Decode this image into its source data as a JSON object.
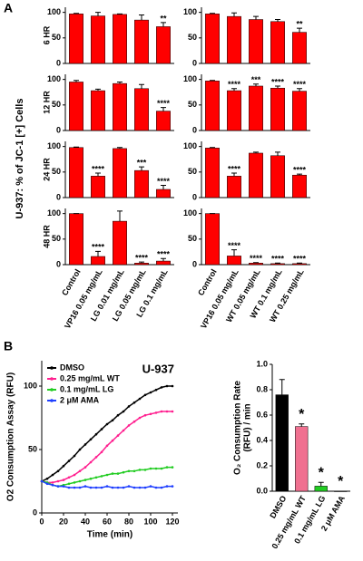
{
  "panels": [
    {
      "letter": "A",
      "ylabel": "U-937: % of JC-1 [+] Cells"
    },
    {
      "letter": "B"
    }
  ],
  "chart_data": [
    {
      "type": "bar",
      "label": "6 HR",
      "color": "#ff0000",
      "ylim": [
        0,
        110
      ],
      "yticks": [
        0,
        50,
        100
      ],
      "values": [
        97,
        93,
        96,
        85,
        72
      ],
      "errors": [
        1,
        7,
        1,
        10,
        8
      ],
      "significance": [
        null,
        null,
        null,
        null,
        "**"
      ]
    },
    {
      "type": "bar",
      "color": "#ff0000",
      "ylim": [
        0,
        110
      ],
      "yticks": [
        0,
        50,
        100
      ],
      "values": [
        97,
        92,
        86,
        82,
        61
      ],
      "errors": [
        1,
        7,
        6,
        4,
        8
      ],
      "significance": [
        null,
        null,
        null,
        null,
        "**"
      ]
    },
    {
      "type": "bar",
      "label": "12 HR",
      "color": "#ff0000",
      "ylim": [
        0,
        110
      ],
      "yticks": [
        0,
        50,
        100
      ],
      "values": [
        95,
        78,
        92,
        82,
        38
      ],
      "errors": [
        3,
        3,
        3,
        8,
        7
      ],
      "significance": [
        null,
        null,
        null,
        null,
        "****"
      ]
    },
    {
      "type": "bar",
      "color": "#ff0000",
      "ylim": [
        0,
        110
      ],
      "yticks": [
        0,
        50,
        100
      ],
      "values": [
        97,
        78,
        87,
        83,
        77
      ],
      "errors": [
        1,
        4,
        4,
        4,
        5
      ],
      "significance": [
        null,
        "****",
        "***",
        "****",
        "****"
      ]
    },
    {
      "type": "bar",
      "label": "24 HR",
      "color": "#ff0000",
      "ylim": [
        0,
        110
      ],
      "yticks": [
        0,
        50,
        100
      ],
      "values": [
        98,
        42,
        96,
        53,
        16
      ],
      "errors": [
        1,
        6,
        2,
        7,
        8
      ],
      "significance": [
        null,
        "****",
        null,
        "***",
        "****"
      ]
    },
    {
      "type": "bar",
      "color": "#ff0000",
      "ylim": [
        0,
        110
      ],
      "yticks": [
        0,
        50,
        100
      ],
      "values": [
        97,
        42,
        87,
        82,
        44
      ],
      "errors": [
        1,
        6,
        2,
        7,
        2
      ],
      "significance": [
        null,
        "****",
        null,
        null,
        "****"
      ]
    },
    {
      "type": "bar",
      "label": "48 HR",
      "color": "#ff0000",
      "ylim": [
        0,
        110
      ],
      "yticks": [
        0,
        50,
        100
      ],
      "categories": [
        "Control",
        "VP16 0.05 mg/mL",
        "LG 0.01 mg/mL",
        "LG 0.05 mg/mL",
        "LG 0.1 mg/mL"
      ],
      "values": [
        100,
        16,
        85,
        3,
        7
      ],
      "errors": [
        0,
        10,
        20,
        2,
        5
      ],
      "significance": [
        null,
        "****",
        null,
        "****",
        "****"
      ]
    },
    {
      "type": "bar",
      "color": "#ff0000",
      "ylim": [
        0,
        110
      ],
      "yticks": [
        0,
        50,
        100
      ],
      "categories": [
        "Control",
        "VP16 0.05 mg/mL",
        "WT 0.05 mg/mL",
        "WT 0.1 mg/mL",
        "WT 0.25 mg/mL"
      ],
      "values": [
        100,
        17,
        3,
        2,
        2
      ],
      "errors": [
        0,
        12,
        1,
        1,
        1
      ],
      "significance": [
        null,
        "****",
        "****",
        "****",
        "****"
      ]
    },
    {
      "type": "line",
      "title": "U-937",
      "ylabel": [
        "O2 Consumption Assay (RFU)"
      ],
      "xlabel": "Time (min)",
      "xlim": [
        0,
        125
      ],
      "xticks": [
        0,
        20,
        40,
        60,
        80,
        100,
        120
      ],
      "ylim": [
        0,
        120
      ],
      "yticks": [
        0,
        50,
        100
      ],
      "legend": "upper left",
      "x": [
        0,
        5,
        10,
        15,
        20,
        25,
        30,
        35,
        40,
        45,
        50,
        55,
        60,
        65,
        70,
        75,
        80,
        85,
        90,
        95,
        100,
        105,
        110,
        115,
        120
      ],
      "series": [
        {
          "name": "DMSO",
          "color": "#000000",
          "values": [
            25,
            27,
            30,
            33,
            37,
            41,
            45,
            50,
            54,
            58,
            62,
            66,
            70,
            73,
            77,
            80,
            84,
            87,
            90,
            93,
            95,
            97,
            99,
            100,
            100
          ]
        },
        {
          "name": "0.25 mg/mL WT",
          "color": "#ff1f8f",
          "values": [
            25,
            24,
            24,
            25,
            26,
            28,
            30,
            33,
            36,
            40,
            44,
            48,
            53,
            57,
            61,
            65,
            69,
            72,
            75,
            77,
            78,
            79,
            80,
            80,
            80
          ]
        },
        {
          "name": "0.1 mg/mL LG",
          "color": "#22cc22",
          "values": [
            25,
            24,
            22,
            21,
            22,
            23,
            24,
            25,
            26,
            27,
            28,
            29,
            30,
            31,
            31,
            32,
            33,
            33,
            34,
            34,
            35,
            35,
            35,
            36,
            36
          ]
        },
        {
          "name": "2 μM AMA",
          "color": "#1f3fff",
          "values": [
            25,
            23,
            22,
            21,
            21,
            20,
            20,
            20,
            21,
            20,
            20,
            20,
            21,
            20,
            20,
            20,
            21,
            20,
            20,
            20,
            21,
            20,
            20,
            21,
            21
          ]
        }
      ]
    },
    {
      "type": "bar",
      "ylabel": [
        "O₂ Consumption Rate",
        "(RFU) / min"
      ],
      "ylim": [
        0,
        1.0
      ],
      "yticks": [
        {
          "value": 0,
          "label": "0.0"
        },
        {
          "value": 0.2,
          "label": "0.2"
        },
        {
          "value": 0.4,
          "label": "0.4"
        },
        {
          "value": 0.6,
          "label": "0.6"
        },
        {
          "value": 0.8,
          "label": "0.8"
        },
        {
          "value": 1.0,
          "label": "1.0"
        }
      ],
      "categories": [
        "DMSO",
        "0.25 mg/mL WT",
        "0.1 mg/mL LG",
        "2 μM AMA"
      ],
      "colors": [
        "#000000",
        "#f07090",
        "#22cc22",
        "#1f3fff"
      ],
      "values": [
        0.76,
        0.51,
        0.04,
        0.0
      ],
      "errors": [
        0.12,
        0.02,
        0.03,
        0.0
      ],
      "significance": [
        null,
        "*",
        "*",
        "*"
      ]
    }
  ]
}
